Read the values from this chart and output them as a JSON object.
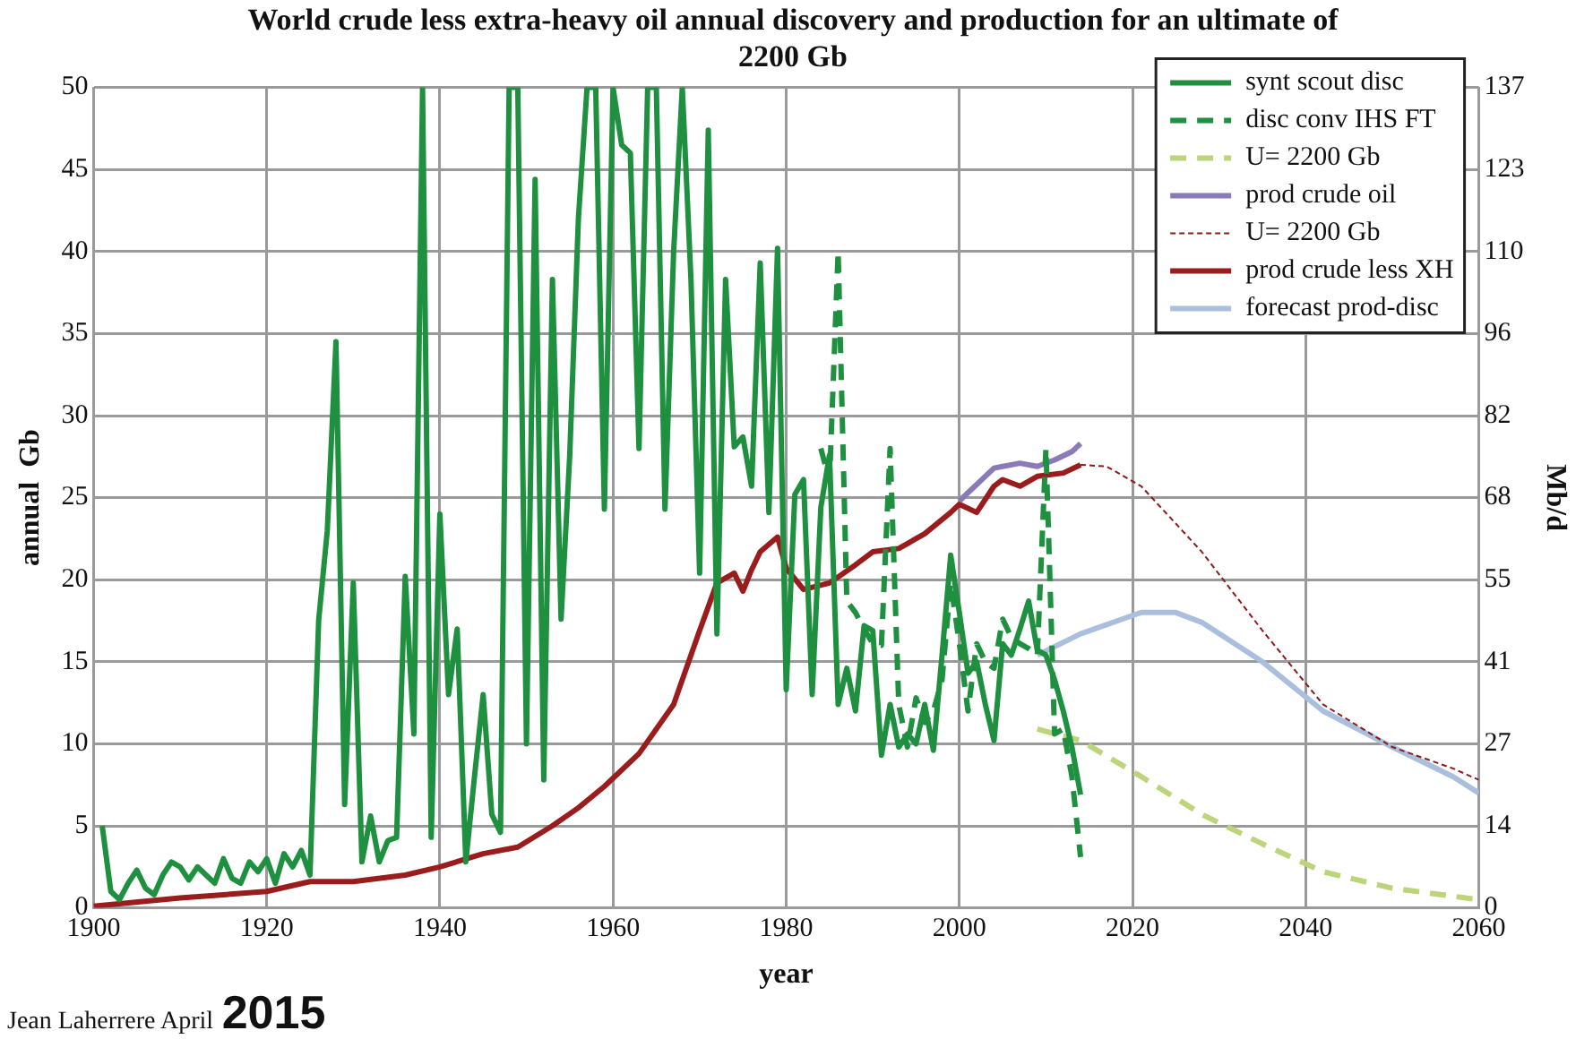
{
  "chart_data": {
    "type": "line",
    "title": "World crude less extra-heavy oil annual discovery and production for an ultimate of 2200 Gb",
    "xlabel": "year",
    "ylabel": "annual  Gb",
    "y2label": "Mb/d",
    "xlim": [
      1900,
      2060
    ],
    "xticks": [
      1900,
      1920,
      1940,
      1960,
      1980,
      2000,
      2020,
      2040,
      2060
    ],
    "ylim": [
      0,
      50
    ],
    "yticks": [
      0,
      5,
      10,
      15,
      20,
      25,
      30,
      35,
      40,
      45,
      50
    ],
    "y2lim": [
      0,
      137
    ],
    "y2ticks": [
      0,
      {
        "value": 13.7,
        "label": "14"
      },
      {
        "value": 27.4,
        "label": "27"
      },
      {
        "value": 41.1,
        "label": "41"
      },
      {
        "value": 54.8,
        "label": "55"
      },
      {
        "value": 68.5,
        "label": "68"
      },
      {
        "value": 82.2,
        "label": "82"
      },
      {
        "value": 95.9,
        "label": "96"
      },
      {
        "value": 109.6,
        "label": "110"
      },
      {
        "value": 123.3,
        "label": "123"
      },
      137
    ],
    "grid": true,
    "legend": "top right",
    "marker": "none",
    "annotations": [
      "Jean Laherrere April",
      "2015"
    ],
    "series": [
      {
        "name": "synt scout disc",
        "color": "#1e9040",
        "line_style": "solid",
        "x": [
          1901,
          1902,
          1903,
          1904,
          1905,
          1906,
          1907,
          1908,
          1909,
          1910,
          1911,
          1912,
          1913,
          1914,
          1915,
          1916,
          1917,
          1918,
          1919,
          1920,
          1921,
          1922,
          1923,
          1924,
          1925,
          1926,
          1927,
          1928,
          1929,
          1930,
          1931,
          1932,
          1933,
          1934,
          1935,
          1936,
          1937,
          1938,
          1939,
          1940,
          1941,
          1942,
          1943,
          1944,
          1945,
          1946,
          1947,
          1948,
          1949,
          1950,
          1951,
          1952,
          1953,
          1954,
          1955,
          1956,
          1957,
          1958,
          1959,
          1960,
          1961,
          1962,
          1963,
          1964,
          1965,
          1966,
          1967,
          1968,
          1969,
          1970,
          1971,
          1972,
          1973,
          1974,
          1975,
          1976,
          1977,
          1978,
          1979,
          1980,
          1981,
          1982,
          1983,
          1984,
          1985,
          1986,
          1987,
          1988,
          1989,
          1990,
          1991,
          1992,
          1993,
          1994,
          1995,
          1996,
          1997,
          1998,
          1999,
          2000,
          2001,
          2002,
          2003,
          2004,
          2005,
          2006,
          2007,
          2008,
          2009,
          2010,
          2011,
          2012,
          2013,
          2014
        ],
        "values": [
          5,
          1,
          0.5,
          1.5,
          2.3,
          1.2,
          0.8,
          2,
          2.8,
          2.5,
          1.7,
          2.5,
          2,
          1.5,
          3,
          1.8,
          1.5,
          2.8,
          2.2,
          3,
          1.5,
          3.3,
          2.5,
          3.5,
          2,
          17.5,
          23,
          34.5,
          6.3,
          19.8,
          2.8,
          5.6,
          2.8,
          4.1,
          4.3,
          20.2,
          10.6,
          50,
          4.3,
          24,
          13,
          17,
          2.8,
          8,
          13,
          5.7,
          4.6,
          50,
          50,
          10,
          44.4,
          7.8,
          38.3,
          17.6,
          27.6,
          42,
          50,
          50,
          24.3,
          50,
          46.5,
          46,
          28,
          50,
          50,
          24.3,
          40,
          50,
          38.3,
          20.4,
          47.4,
          16.7,
          38.3,
          28.1,
          28.7,
          25.7,
          39.3,
          24.1,
          40.2,
          13.3,
          25.2,
          26.1,
          13,
          24.4,
          27.6,
          12.4,
          14.6,
          12,
          17.2,
          16.9,
          9.3,
          12.4,
          9.8,
          10.6,
          10,
          12.4,
          9.6,
          15.4,
          21.5,
          18,
          14.3,
          15,
          12.4,
          10.2,
          16.1,
          15.4,
          17,
          18.7,
          15.7,
          15.4,
          13.9,
          12,
          9.8,
          6.9
        ]
      },
      {
        "name": "disc conv IHS FT",
        "color": "#1e9040",
        "line_style": "dashed",
        "x": [
          1984,
          1985,
          1986,
          1987,
          1988,
          1989,
          1990,
          1991,
          1992,
          1993,
          1994,
          1995,
          1996,
          1997,
          1998,
          1999,
          2000,
          2001,
          2002,
          2003,
          2004,
          2005,
          2006,
          2007,
          2008,
          2009,
          2010,
          2011,
          2012,
          2013,
          2014
        ],
        "values": [
          28,
          26,
          40,
          18.7,
          18,
          17,
          16.1,
          16,
          28,
          12.4,
          9.8,
          12.8,
          11.3,
          12,
          13.9,
          19.8,
          16.1,
          12,
          16.1,
          15,
          14.6,
          17.6,
          16.5,
          16.1,
          15.8,
          15.4,
          28,
          10.6,
          10.9,
          8,
          3.1
        ]
      },
      {
        "name": "U= 2200 Gb",
        "color": "#bcd47a",
        "line_style": "dashed",
        "x": [
          2009,
          2014,
          2021,
          2028,
          2035,
          2042,
          2050,
          2060
        ],
        "values": [
          10.9,
          10.2,
          8,
          5.7,
          3.9,
          2.2,
          1.2,
          0.5
        ]
      },
      {
        "name": "prod crude oil",
        "color": "#8a7ab8",
        "line_style": "solid",
        "x": [
          2000,
          2004,
          2005,
          2007,
          2009,
          2011,
          2013,
          2014
        ],
        "values": [
          24.8,
          26.8,
          26.9,
          27.1,
          26.9,
          27.3,
          27.8,
          28.3
        ]
      },
      {
        "name": "U= 2200 Gb",
        "color": "#8b1a1a",
        "line_style": "dotted",
        "x": [
          2014,
          2017,
          2021,
          2028,
          2035,
          2042,
          2050,
          2057,
          2060
        ],
        "values": [
          27,
          26.9,
          25.7,
          21.7,
          16.9,
          12.4,
          9.8,
          8.5,
          7.8
        ]
      },
      {
        "name": "prod crude less XH",
        "color": "#9b1c1c",
        "line_style": "solid",
        "x": [
          1900,
          1910,
          1915,
          1920,
          1925,
          1930,
          1936,
          1940,
          1945,
          1949,
          1953,
          1956,
          1959,
          1963,
          1967,
          1970,
          1972,
          1974,
          1975,
          1976,
          1977,
          1979,
          1980,
          1982,
          1985,
          1988,
          1990,
          1993,
          1996,
          1999,
          2000,
          2002,
          2004,
          2005,
          2007,
          2009,
          2012,
          2014
        ],
        "values": [
          0.1,
          0.6,
          0.8,
          1,
          1.6,
          1.6,
          2,
          2.5,
          3.3,
          3.7,
          5,
          6.1,
          7.4,
          9.4,
          12.4,
          16.9,
          19.8,
          20.4,
          19.3,
          20.6,
          21.7,
          22.6,
          20.7,
          19.4,
          19.8,
          20.9,
          21.7,
          21.9,
          22.8,
          24.1,
          24.6,
          24.1,
          25.7,
          26.1,
          25.7,
          26.3,
          26.5,
          27
        ]
      },
      {
        "name": "forecast prod-disc",
        "color": "#a9bfdd",
        "line_style": "solid",
        "x": [
          2009,
          2014,
          2021,
          2025,
          2028,
          2035,
          2042,
          2050,
          2057,
          2060
        ],
        "values": [
          15.4,
          16.7,
          18,
          18,
          17.4,
          15,
          12,
          9.8,
          8,
          7
        ]
      }
    ]
  }
}
